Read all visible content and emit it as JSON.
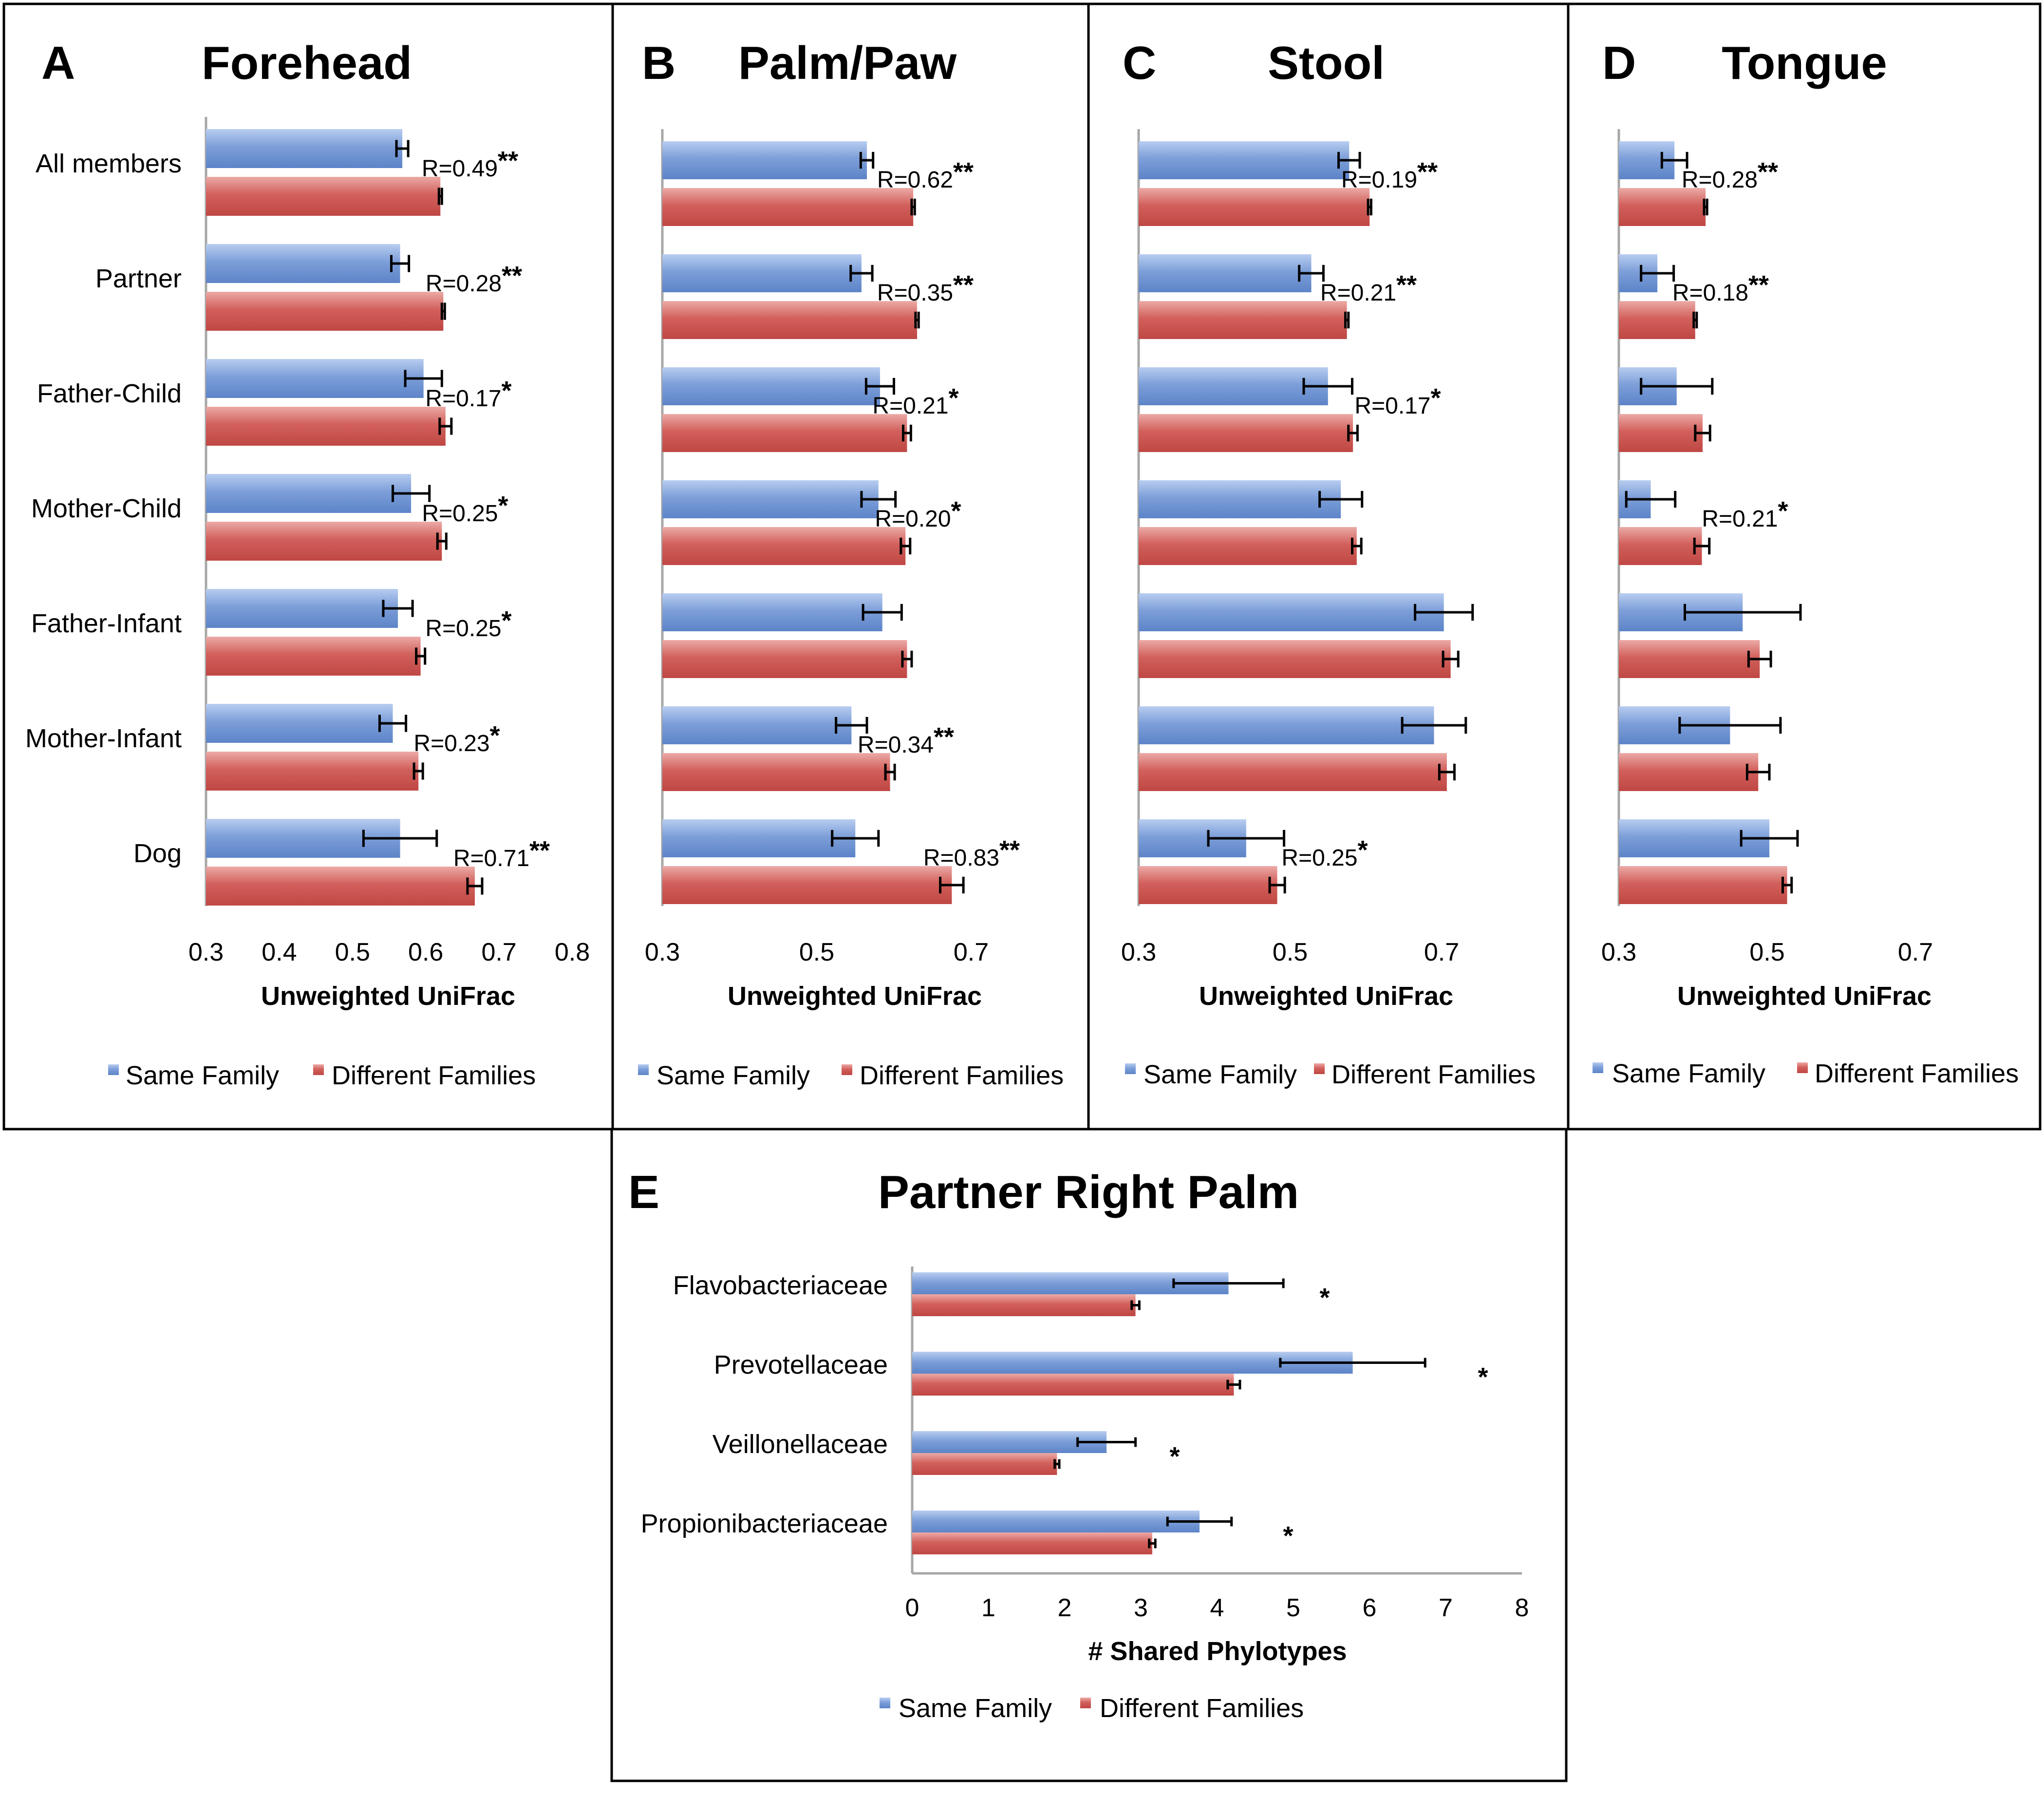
{
  "colors": {
    "same": "#7199d6",
    "diff": "#cc5552",
    "axis": "#a7a7a7",
    "err": "#000000"
  },
  "legend": {
    "same": "Same Family",
    "diff": "Different Families"
  },
  "chart_data": [
    {
      "id": "A",
      "type": "bar",
      "orientation": "horizontal",
      "panel_letter": "A",
      "title": "Forehead",
      "xlabel": "Unweighted UniFrac",
      "xlim": [
        0.3,
        0.8
      ],
      "xticks": [
        "0.3",
        "0.4",
        "0.5",
        "0.6",
        "0.7",
        "0.8"
      ],
      "categories": [
        "All members",
        "Partner",
        "Father-Child",
        "Mother-Child",
        "Father-Infant",
        "Mother-Infant",
        "Dog"
      ],
      "series": [
        {
          "name": "Same Family",
          "values": [
            0.568,
            0.565,
            0.597,
            0.58,
            0.562,
            0.555,
            0.565
          ],
          "errors": [
            0.008,
            0.012,
            0.025,
            0.025,
            0.02,
            0.018,
            0.05
          ]
        },
        {
          "name": "Different Families",
          "values": [
            0.62,
            0.624,
            0.627,
            0.622,
            0.593,
            0.59,
            0.667
          ],
          "errors": [
            0.002,
            0.002,
            0.008,
            0.006,
            0.006,
            0.006,
            0.01
          ]
        }
      ],
      "annotations": [
        {
          "text": "R=0.49",
          "stars": "**"
        },
        {
          "text": "R=0.28",
          "stars": "**"
        },
        {
          "text": "R=0.17",
          "stars": "*"
        },
        {
          "text": "R=0.25",
          "stars": "*"
        },
        {
          "text": "R=0.25",
          "stars": "*"
        },
        {
          "text": "R=0.23",
          "stars": "*"
        },
        {
          "text": "R=0.71",
          "stars": "**"
        }
      ]
    },
    {
      "id": "B",
      "type": "bar",
      "orientation": "horizontal",
      "panel_letter": "B",
      "title": "Palm/Paw",
      "xlabel": "Unweighted UniFrac",
      "xlim": [
        0.3,
        0.7
      ],
      "xticks": [
        "0.3",
        "0.5",
        "0.7"
      ],
      "categories": [
        "All members",
        "Partner",
        "Father-Child",
        "Mother-Child",
        "Father-Infant",
        "Mother-Infant",
        "Dog"
      ],
      "series": [
        {
          "name": "Same Family",
          "values": [
            0.565,
            0.558,
            0.582,
            0.58,
            0.585,
            0.545,
            0.55
          ],
          "errors": [
            0.008,
            0.014,
            0.018,
            0.022,
            0.025,
            0.02,
            0.03
          ]
        },
        {
          "name": "Different Families",
          "values": [
            0.625,
            0.63,
            0.617,
            0.615,
            0.617,
            0.595,
            0.675
          ],
          "errors": [
            0.002,
            0.002,
            0.005,
            0.006,
            0.006,
            0.006,
            0.015
          ]
        }
      ],
      "annotations": [
        {
          "text": "R=0.62",
          "stars": "**"
        },
        {
          "text": "R=0.35",
          "stars": "**"
        },
        {
          "text": "R=0.21",
          "stars": "*"
        },
        {
          "text": "R=0.20",
          "stars": "*"
        },
        {
          "text": "",
          "stars": ""
        },
        {
          "text": "R=0.34",
          "stars": "**"
        },
        {
          "text": "R=0.83",
          "stars": "**"
        }
      ]
    },
    {
      "id": "C",
      "type": "bar",
      "orientation": "horizontal",
      "panel_letter": "C",
      "title": "Stool",
      "xlabel": "Unweighted UniFrac",
      "xlim": [
        0.3,
        0.7
      ],
      "xticks": [
        "0.3",
        "0.5",
        "0.7"
      ],
      "categories": [
        "All members",
        "Partner",
        "Father-Child",
        "Mother-Child",
        "Father-Infant",
        "Mother-Infant",
        "Dog"
      ],
      "series": [
        {
          "name": "Same Family",
          "values": [
            0.578,
            0.528,
            0.55,
            0.567,
            0.703,
            0.69,
            0.442
          ],
          "errors": [
            0.014,
            0.016,
            0.032,
            0.028,
            0.038,
            0.042,
            0.05
          ]
        },
        {
          "name": "Different Families",
          "values": [
            0.605,
            0.575,
            0.583,
            0.588,
            0.712,
            0.707,
            0.483
          ],
          "errors": [
            0.002,
            0.002,
            0.006,
            0.006,
            0.01,
            0.01,
            0.01
          ]
        }
      ],
      "annotations": [
        {
          "text": "R=0.19",
          "stars": "**"
        },
        {
          "text": "R=0.21",
          "stars": "**"
        },
        {
          "text": "R=0.17",
          "stars": "*"
        },
        {
          "text": "",
          "stars": ""
        },
        {
          "text": "",
          "stars": ""
        },
        {
          "text": "",
          "stars": ""
        },
        {
          "text": "R=0.25",
          "stars": "*"
        }
      ]
    },
    {
      "id": "D",
      "type": "bar",
      "orientation": "horizontal",
      "panel_letter": "D",
      "title": "Tongue",
      "xlabel": "Unweighted UniFrac",
      "xlim": [
        0.3,
        0.7
      ],
      "xticks": [
        "0.3",
        "0.5",
        "0.7"
      ],
      "categories": [
        "All members",
        "Partner",
        "Father-Child",
        "Mother-Child",
        "Father-Infant",
        "Mother-Infant",
        "Dog"
      ],
      "series": [
        {
          "name": "Same Family",
          "values": [
            0.375,
            0.352,
            0.378,
            0.343,
            0.467,
            0.45,
            0.503
          ],
          "errors": [
            0.017,
            0.022,
            0.048,
            0.033,
            0.078,
            0.068,
            0.038
          ]
        },
        {
          "name": "Different Families",
          "values": [
            0.417,
            0.403,
            0.413,
            0.412,
            0.49,
            0.488,
            0.527
          ],
          "errors": [
            0.002,
            0.002,
            0.01,
            0.01,
            0.015,
            0.015,
            0.006
          ]
        }
      ],
      "annotations": [
        {
          "text": "R=0.28",
          "stars": "**"
        },
        {
          "text": "R=0.18",
          "stars": "**"
        },
        {
          "text": "",
          "stars": ""
        },
        {
          "text": "R=0.21",
          "stars": "*"
        },
        {
          "text": "",
          "stars": ""
        },
        {
          "text": "",
          "stars": ""
        },
        {
          "text": "",
          "stars": ""
        }
      ]
    },
    {
      "id": "E",
      "type": "bar",
      "orientation": "horizontal",
      "panel_letter": "E",
      "title": "Partner Right Palm",
      "xlabel": "# Shared Phylotypes",
      "xlim": [
        0,
        8
      ],
      "xticks": [
        "0",
        "1",
        "2",
        "3",
        "4",
        "5",
        "6",
        "7",
        "8"
      ],
      "categories": [
        "Flavobacteriaceae",
        "Prevotellaceae",
        "Veillonellaceae",
        "Propionibacteriaceae"
      ],
      "series": [
        {
          "name": "Same Family",
          "values": [
            4.15,
            5.78,
            2.55,
            3.77
          ],
          "errors": [
            0.72,
            0.95,
            0.38,
            0.42
          ]
        },
        {
          "name": "Different Families",
          "values": [
            2.93,
            4.22,
            1.9,
            3.15
          ],
          "errors": [
            0.05,
            0.08,
            0.03,
            0.04
          ]
        }
      ],
      "annotations": [
        {
          "text": "",
          "stars": "*"
        },
        {
          "text": "",
          "stars": "*"
        },
        {
          "text": "",
          "stars": "*"
        },
        {
          "text": "",
          "stars": "*"
        }
      ]
    }
  ]
}
